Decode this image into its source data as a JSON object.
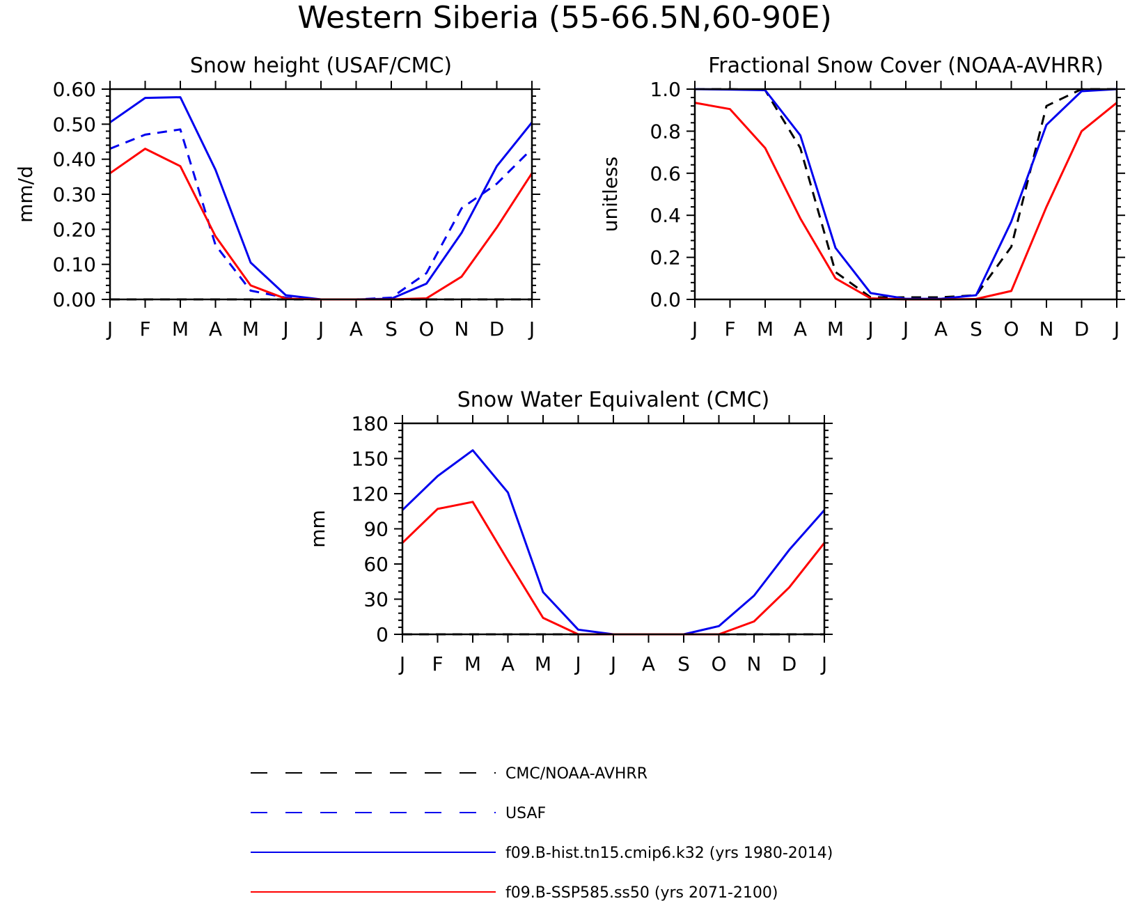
{
  "figure": {
    "title": "Western Siberia (55-66.5N,60-90E)"
  },
  "chart_data": [
    {
      "id": "snow_height",
      "type": "line",
      "title": "Snow height (USAF/CMC)",
      "xlabel": "",
      "ylabel": "mm/d",
      "categories": [
        "J",
        "F",
        "M",
        "A",
        "M",
        "J",
        "J",
        "A",
        "S",
        "O",
        "N",
        "D",
        "J"
      ],
      "ylim": [
        0,
        0.6
      ],
      "yticks": [
        0.0,
        0.1,
        0.2,
        0.3,
        0.4,
        0.5,
        0.6
      ],
      "ytick_labels": [
        "0.00",
        "0.10",
        "0.20",
        "0.30",
        "0.40",
        "0.50",
        "0.60"
      ],
      "series": [
        {
          "name": "CMC/NOAA-AVHRR",
          "color": "#000000",
          "dash": true,
          "values": [
            0,
            0,
            0,
            0,
            0,
            0,
            0,
            0,
            0,
            0,
            0,
            0,
            0
          ]
        },
        {
          "name": "USAF",
          "color": "#0000ee",
          "dash": true,
          "values": [
            0.43,
            0.47,
            0.485,
            0.155,
            0.025,
            0.005,
            0,
            0,
            0.005,
            0.075,
            0.26,
            0.33,
            0.43
          ]
        },
        {
          "name": "f09.B-hist.tn15.cmip6.k32 (yrs 1980-2014)",
          "color": "#0000ee",
          "dash": false,
          "values": [
            0.505,
            0.575,
            0.577,
            0.37,
            0.105,
            0.012,
            0,
            0,
            0.002,
            0.045,
            0.19,
            0.38,
            0.505
          ]
        },
        {
          "name": "f09.B-SSP585.ss50 (yrs 2071-2100)",
          "color": "#ff0000",
          "dash": false,
          "values": [
            0.36,
            0.43,
            0.38,
            0.18,
            0.04,
            0.002,
            0,
            0,
            0,
            0.003,
            0.065,
            0.205,
            0.36
          ]
        }
      ]
    },
    {
      "id": "fractional_snow_cover",
      "type": "line",
      "title": "Fractional Snow Cover (NOAA-AVHRR)",
      "xlabel": "",
      "ylabel": "unitless",
      "categories": [
        "J",
        "F",
        "M",
        "A",
        "M",
        "J",
        "J",
        "A",
        "S",
        "O",
        "N",
        "D",
        "J"
      ],
      "ylim": [
        0,
        1.0
      ],
      "yticks": [
        0.0,
        0.2,
        0.4,
        0.6,
        0.8,
        1.0
      ],
      "ytick_labels": [
        "0.0",
        "0.2",
        "0.4",
        "0.6",
        "0.8",
        "1.0"
      ],
      "series": [
        {
          "name": "CMC/NOAA-AVHRR",
          "color": "#000000",
          "dash": true,
          "values": [
            1.0,
            1.0,
            0.995,
            0.72,
            0.13,
            0.01,
            0.01,
            0.01,
            0.02,
            0.25,
            0.92,
            1.0,
            1.0
          ]
        },
        {
          "name": "f09.B-hist.tn15.cmip6.k32 (yrs 1980-2014)",
          "color": "#0000ee",
          "dash": false,
          "values": [
            1.0,
            0.998,
            0.995,
            0.78,
            0.245,
            0.03,
            0.003,
            0.003,
            0.02,
            0.37,
            0.83,
            0.99,
            1.0
          ]
        },
        {
          "name": "f09.B-SSP585.ss50 (yrs 2071-2100)",
          "color": "#ff0000",
          "dash": false,
          "values": [
            0.935,
            0.905,
            0.72,
            0.385,
            0.1,
            0.005,
            0,
            0,
            0.002,
            0.04,
            0.44,
            0.8,
            0.935
          ]
        }
      ]
    },
    {
      "id": "snow_water_equivalent",
      "type": "line",
      "title": "Snow Water Equivalent (CMC)",
      "xlabel": "",
      "ylabel": "mm",
      "categories": [
        "J",
        "F",
        "M",
        "A",
        "M",
        "J",
        "J",
        "A",
        "S",
        "O",
        "N",
        "D",
        "J"
      ],
      "ylim": [
        0,
        180
      ],
      "yticks": [
        0,
        30,
        60,
        90,
        120,
        150,
        180
      ],
      "ytick_labels": [
        "0",
        "30",
        "60",
        "90",
        "120",
        "150",
        "180"
      ],
      "series": [
        {
          "name": "CMC/NOAA-AVHRR",
          "color": "#000000",
          "dash": true,
          "values": [
            0,
            0,
            0,
            0,
            0,
            0,
            0,
            0,
            0,
            0,
            0,
            0,
            0
          ]
        },
        {
          "name": "f09.B-hist.tn15.cmip6.k32 (yrs 1980-2014)",
          "color": "#0000ee",
          "dash": false,
          "values": [
            106,
            135,
            157,
            121,
            36,
            4,
            0,
            0,
            0,
            7,
            33,
            72,
            106
          ]
        },
        {
          "name": "f09.B-SSP585.ss50 (yrs 2071-2100)",
          "color": "#ff0000",
          "dash": false,
          "values": [
            78,
            107,
            113,
            63,
            14,
            0,
            0,
            0,
            0,
            0,
            11,
            40,
            78
          ]
        }
      ]
    }
  ],
  "legend": {
    "placement": "bottom-center",
    "entries": [
      {
        "label": "CMC/NOAA-AVHRR",
        "color": "#000000",
        "dash": true
      },
      {
        "label": "USAF",
        "color": "#0000ee",
        "dash": true
      },
      {
        "label": "f09.B-hist.tn15.cmip6.k32 (yrs 1980-2014)",
        "color": "#0000ee",
        "dash": false
      },
      {
        "label": "f09.B-SSP585.ss50 (yrs 2071-2100)",
        "color": "#ff0000",
        "dash": false
      }
    ]
  }
}
